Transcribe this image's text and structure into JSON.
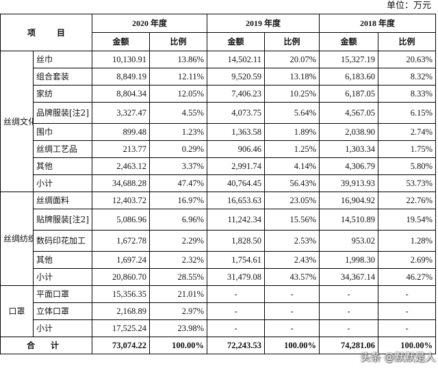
{
  "unit_label": "单位：万元",
  "header": {
    "item": "项 目",
    "years": [
      "2020 年度",
      "2019 年度",
      "2018 年度"
    ],
    "amount": "金额",
    "ratio": "比例"
  },
  "groups": [
    {
      "category": "丝绸文化创意品（自有终端品牌）",
      "rows": [
        {
          "name": "丝巾",
          "values": [
            "10,130.91",
            "13.86%",
            "14,502.11",
            "20.07%",
            "15,327.19",
            "20.63%"
          ]
        },
        {
          "name": "组合套装",
          "values": [
            "8,849.19",
            "12.11%",
            "9,520.59",
            "13.18%",
            "6,183.60",
            "8.32%"
          ]
        },
        {
          "name": "家纺",
          "values": [
            "8,804.34",
            "12.05%",
            "7,406.23",
            "10.25%",
            "6,187.05",
            "8.33%"
          ]
        },
        {
          "name": "品牌服装[注2]",
          "values": [
            "3,327.47",
            "4.55%",
            "4,073.75",
            "5.64%",
            "4,567.05",
            "6.15%"
          ]
        },
        {
          "name": "围巾",
          "values": [
            "899.48",
            "1.23%",
            "1,363.58",
            "1.89%",
            "2,038.90",
            "2.74%"
          ]
        },
        {
          "name": "丝绸工艺品",
          "values": [
            "213.77",
            "0.29%",
            "906.46",
            "1.25%",
            "1,303.34",
            "1.75%"
          ]
        },
        {
          "name": "其他",
          "values": [
            "2,463.12",
            "3.37%",
            "2,991.74",
            "4.14%",
            "4,306.79",
            "5.80%"
          ]
        },
        {
          "name": "小计",
          "values": [
            "34,688.28",
            "47.47%",
            "40,764.45",
            "56.43%",
            "39,913.93",
            "53.73%"
          ]
        }
      ]
    },
    {
      "category": "丝绸纺织制品（非自有终端品牌）",
      "rows": [
        {
          "name": "丝绸面料",
          "values": [
            "12,403.72",
            "16.97%",
            "16,653.63",
            "23.05%",
            "16,904.92",
            "22.76%"
          ]
        },
        {
          "name": "贴牌服装[注2]",
          "values": [
            "5,086.96",
            "6.96%",
            "11,242.34",
            "15.56%",
            "14,510.89",
            "19.54%"
          ]
        },
        {
          "name": "数码印花加工",
          "values": [
            "1,672.78",
            "2.29%",
            "1,828.50",
            "2.53%",
            "953.02",
            "1.28%"
          ]
        },
        {
          "name": "其他",
          "values": [
            "1,697.24",
            "2.32%",
            "1,754.61",
            "2.43%",
            "1,998.30",
            "2.69%"
          ]
        },
        {
          "name": "小计",
          "values": [
            "20,860.70",
            "28.55%",
            "31,479.08",
            "43.57%",
            "34,367.14",
            "46.27%"
          ]
        }
      ]
    },
    {
      "category": "口罩",
      "rows": [
        {
          "name": "平面口罩",
          "values": [
            "15,356.35",
            "21.01%",
            "-",
            "-",
            "-",
            "-"
          ]
        },
        {
          "name": "立体口罩",
          "values": [
            "2,168.89",
            "2.97%",
            "-",
            "-",
            "-",
            "-"
          ]
        },
        {
          "name": "小计",
          "values": [
            "17,525.24",
            "23.98%",
            "-",
            "-",
            "-",
            "-"
          ]
        }
      ]
    }
  ],
  "total": {
    "label": "合 计",
    "values": [
      "73,074.22",
      "100.00%",
      "72,243.53",
      "100.00%",
      "74,281.06",
      "100.00%"
    ]
  },
  "watermark": "头条 @默默是人"
}
